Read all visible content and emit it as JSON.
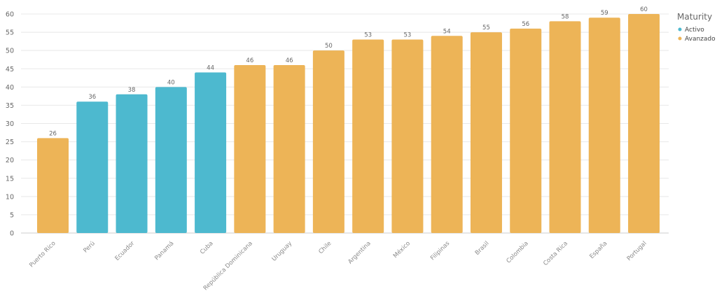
{
  "chart_data": {
    "type": "bar",
    "title": "",
    "xlabel": "",
    "ylabel": "",
    "ylim": [
      0,
      60
    ],
    "yticks": [
      0,
      5,
      10,
      15,
      20,
      25,
      30,
      35,
      40,
      45,
      50,
      55,
      60
    ],
    "grid": true,
    "categories": [
      "Puerto Rico",
      "Perú",
      "Ecuador",
      "Panamá",
      "Cuba",
      "República Dominicana",
      "Uruguay",
      "Chile",
      "Argentina",
      "México",
      "Filipinas",
      "Brasil",
      "Colombia",
      "Costa Rica",
      "España",
      "Portugal"
    ],
    "values": [
      26,
      36,
      38,
      40,
      44,
      46,
      46,
      50,
      53,
      53,
      54,
      55,
      56,
      58,
      59,
      60
    ],
    "groups": [
      "Avanzado",
      "Activo",
      "Activo",
      "Activo",
      "Activo",
      "Avanzado",
      "Avanzado",
      "Avanzado",
      "Avanzado",
      "Avanzado",
      "Avanzado",
      "Avanzado",
      "Avanzado",
      "Avanzado",
      "Avanzado",
      "Avanzado"
    ],
    "legend": {
      "title": "Maturity",
      "position": "top-right",
      "entries": [
        {
          "label": "Activo",
          "color": "#4DB9CF"
        },
        {
          "label": "Avanzado",
          "color": "#EDB457"
        }
      ]
    }
  }
}
